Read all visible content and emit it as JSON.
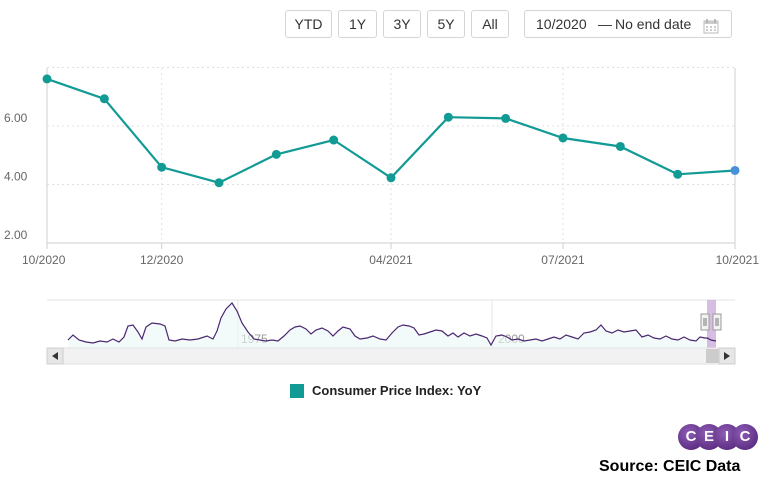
{
  "toolbar": {
    "buttons": [
      "YTD",
      "1Y",
      "3Y",
      "5Y",
      "All"
    ],
    "date_from": "10/2020",
    "date_separator": "—",
    "date_to": "No end date",
    "calendar_icon": "calendar-icon"
  },
  "chart_data": {
    "type": "line",
    "x": [
      "10/2020",
      "11/2020",
      "12/2020",
      "01/2021",
      "02/2021",
      "03/2021",
      "04/2021",
      "05/2021",
      "06/2021",
      "07/2021",
      "08/2021",
      "09/2021",
      "10/2021"
    ],
    "series": [
      {
        "name": "Consumer Price Index: YoY",
        "color": "#129a94",
        "values": [
          7.61,
          6.93,
          4.59,
          4.06,
          5.03,
          5.52,
          4.23,
          6.3,
          6.26,
          5.59,
          5.3,
          4.35,
          4.48
        ]
      }
    ],
    "last_point_color": "#4a90d9",
    "y_ticks": [
      "2.00",
      "4.00",
      "6.00"
    ],
    "x_tick_labels": [
      "10/2020",
      "12/2020",
      "04/2021",
      "07/2021",
      "10/2021"
    ],
    "ylim": [
      2.0,
      8.0
    ],
    "grid": true,
    "legend": "bottom-center"
  },
  "navigator": {
    "labels": [
      "1975",
      "2000"
    ]
  },
  "legend": {
    "label": "Consumer Price Index: YoY"
  },
  "logo": {
    "letters": [
      "C",
      "E",
      "I",
      "C"
    ]
  },
  "source": "Source: CEIC Data"
}
